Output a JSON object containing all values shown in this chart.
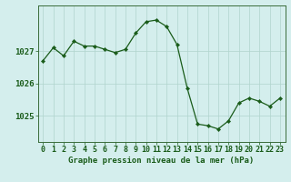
{
  "x": [
    0,
    1,
    2,
    3,
    4,
    5,
    6,
    7,
    8,
    9,
    10,
    11,
    12,
    13,
    14,
    15,
    16,
    17,
    18,
    19,
    20,
    21,
    22,
    23
  ],
  "y": [
    1026.7,
    1027.1,
    1026.85,
    1027.3,
    1027.15,
    1027.15,
    1027.05,
    1026.95,
    1027.05,
    1027.55,
    1027.9,
    1027.95,
    1027.75,
    1027.2,
    1025.85,
    1024.75,
    1024.7,
    1024.6,
    1024.85,
    1025.4,
    1025.55,
    1025.45,
    1025.3,
    1025.55
  ],
  "line_color": "#1a5c1a",
  "marker_color": "#1a5c1a",
  "bg_color": "#d4eeed",
  "grid_color_major": "#b0d4cc",
  "grid_color_minor": "#c8e8e0",
  "axis_color": "#3a6b3a",
  "tick_color": "#1a5c1a",
  "xlabel": "Graphe pression niveau de la mer (hPa)",
  "yticks": [
    1025,
    1026,
    1027
  ],
  "ylim": [
    1024.2,
    1028.4
  ],
  "xlim": [
    -0.5,
    23.5
  ],
  "xlabel_fontsize": 6.5,
  "tick_fontsize": 6.0,
  "ytick_fontsize": 6.5
}
